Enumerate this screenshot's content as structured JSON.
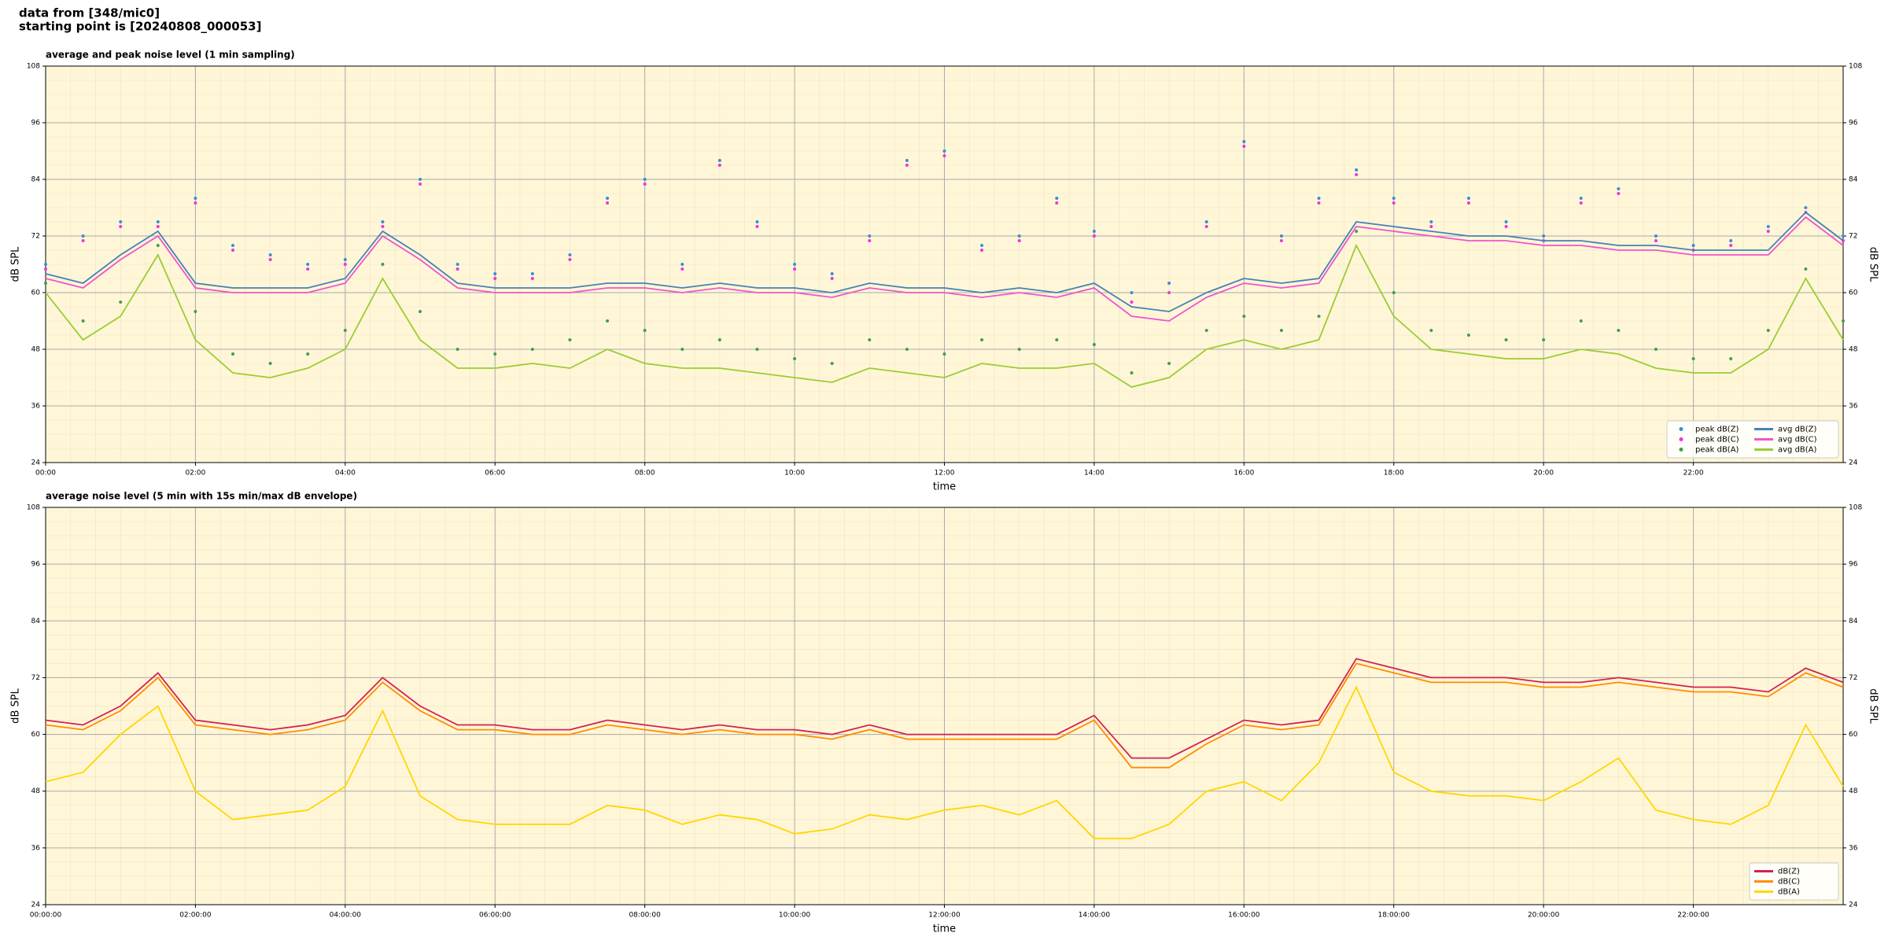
{
  "header": {
    "line1": "data from [348/mic0]",
    "line2": "starting point is [20240808_000053]"
  },
  "chart_data": [
    {
      "type": "line",
      "title": "average and peak noise level (1 min sampling)",
      "xlabel": "time",
      "ylabel": "dB SPL",
      "x": [
        0,
        0.5,
        1,
        1.5,
        2,
        2.5,
        3,
        3.5,
        4,
        4.5,
        5,
        5.5,
        6,
        6.5,
        7,
        7.5,
        8,
        8.5,
        9,
        9.5,
        10,
        10.5,
        11,
        11.5,
        12,
        12.5,
        13,
        13.5,
        14,
        14.5,
        15,
        15.5,
        16,
        16.5,
        17,
        17.5,
        18,
        18.5,
        19,
        19.5,
        20,
        20.5,
        21,
        21.5,
        22,
        22.5,
        23,
        23.5,
        24
      ],
      "xlim": [
        0,
        24
      ],
      "ylim": [
        24,
        108
      ],
      "yticks": [
        24,
        36,
        48,
        60,
        72,
        84,
        96,
        108
      ],
      "xticks": [
        {
          "value": 0,
          "label": "00:00"
        },
        {
          "value": 2,
          "label": "02:00"
        },
        {
          "value": 4,
          "label": "04:00"
        },
        {
          "value": 6,
          "label": "06:00"
        },
        {
          "value": 8,
          "label": "08:00"
        },
        {
          "value": 10,
          "label": "10:00"
        },
        {
          "value": 12,
          "label": "12:00"
        },
        {
          "value": 14,
          "label": "14:00"
        },
        {
          "value": 16,
          "label": "16:00"
        },
        {
          "value": 18,
          "label": "18:00"
        },
        {
          "value": 20,
          "label": "20:00"
        },
        {
          "value": 22,
          "label": "22:00"
        }
      ],
      "grid": true,
      "legend": "lower right",
      "legend_columns": 2,
      "series": [
        {
          "name": "peak dB(Z)",
          "style": "dots",
          "color": "#3a8fd0",
          "values": [
            66,
            72,
            75,
            75,
            80,
            70,
            68,
            66,
            67,
            75,
            84,
            66,
            64,
            64,
            68,
            80,
            84,
            66,
            88,
            75,
            66,
            64,
            72,
            88,
            90,
            70,
            72,
            80,
            73,
            60,
            62,
            75,
            92,
            72,
            80,
            86,
            80,
            75,
            80,
            75,
            72,
            80,
            82,
            72,
            70,
            71,
            74,
            78,
            72
          ]
        },
        {
          "name": "peak dB(C)",
          "style": "dots",
          "color": "#ee33dd",
          "values": [
            65,
            71,
            74,
            74,
            79,
            69,
            67,
            65,
            66,
            74,
            83,
            65,
            63,
            63,
            67,
            79,
            83,
            65,
            87,
            74,
            65,
            63,
            71,
            87,
            89,
            69,
            71,
            79,
            72,
            58,
            60,
            74,
            91,
            71,
            79,
            85,
            79,
            74,
            79,
            74,
            71,
            79,
            81,
            71,
            69,
            70,
            73,
            77,
            71
          ]
        },
        {
          "name": "peak dB(A)",
          "style": "dots",
          "color": "#3f9f4f",
          "values": [
            62,
            54,
            58,
            70,
            56,
            47,
            45,
            47,
            52,
            66,
            56,
            48,
            47,
            48,
            50,
            54,
            52,
            48,
            50,
            48,
            46,
            45,
            50,
            48,
            47,
            50,
            48,
            50,
            49,
            43,
            45,
            52,
            55,
            52,
            55,
            73,
            60,
            52,
            51,
            50,
            50,
            54,
            52,
            48,
            46,
            46,
            52,
            65,
            54
          ]
        },
        {
          "name": "avg dB(Z)",
          "style": "line",
          "color": "#4682b4",
          "values": [
            64,
            62,
            68,
            73,
            62,
            61,
            61,
            61,
            63,
            73,
            68,
            62,
            61,
            61,
            61,
            62,
            62,
            61,
            62,
            61,
            61,
            60,
            62,
            61,
            61,
            60,
            61,
            60,
            62,
            57,
            56,
            60,
            63,
            62,
            63,
            75,
            74,
            73,
            72,
            72,
            71,
            71,
            70,
            70,
            69,
            69,
            69,
            77,
            71
          ]
        },
        {
          "name": "avg dB(C)",
          "style": "line",
          "color": "#ee55cc",
          "values": [
            63,
            61,
            67,
            72,
            61,
            60,
            60,
            60,
            62,
            72,
            67,
            61,
            60,
            60,
            60,
            61,
            61,
            60,
            61,
            60,
            60,
            59,
            61,
            60,
            60,
            59,
            60,
            59,
            61,
            55,
            54,
            59,
            62,
            61,
            62,
            74,
            73,
            72,
            71,
            71,
            70,
            70,
            69,
            69,
            68,
            68,
            68,
            76,
            70
          ]
        },
        {
          "name": "avg dB(A)",
          "style": "line",
          "color": "#9acd32",
          "values": [
            60,
            50,
            55,
            68,
            50,
            43,
            42,
            44,
            48,
            63,
            50,
            44,
            44,
            45,
            44,
            48,
            45,
            44,
            44,
            43,
            42,
            41,
            44,
            43,
            42,
            45,
            44,
            44,
            45,
            40,
            42,
            48,
            50,
            48,
            50,
            70,
            55,
            48,
            47,
            46,
            46,
            48,
            47,
            44,
            43,
            43,
            48,
            63,
            50
          ]
        }
      ]
    },
    {
      "type": "line",
      "title": "average noise level (5 min with 15s min/max dB envelope)",
      "xlabel": "time",
      "ylabel": "dB SPL",
      "x": [
        0,
        0.5,
        1,
        1.5,
        2,
        2.5,
        3,
        3.5,
        4,
        4.5,
        5,
        5.5,
        6,
        6.5,
        7,
        7.5,
        8,
        8.5,
        9,
        9.5,
        10,
        10.5,
        11,
        11.5,
        12,
        12.5,
        13,
        13.5,
        14,
        14.5,
        15,
        15.5,
        16,
        16.5,
        17,
        17.5,
        18,
        18.5,
        19,
        19.5,
        20,
        20.5,
        21,
        21.5,
        22,
        22.5,
        23,
        23.5,
        24
      ],
      "xlim": [
        0,
        24
      ],
      "ylim": [
        24,
        108
      ],
      "yticks": [
        24,
        36,
        48,
        60,
        72,
        84,
        96,
        108
      ],
      "xticks": [
        {
          "value": 0,
          "label": "00:00:00"
        },
        {
          "value": 2,
          "label": "02:00:00"
        },
        {
          "value": 4,
          "label": "04:00:00"
        },
        {
          "value": 6,
          "label": "06:00:00"
        },
        {
          "value": 8,
          "label": "08:00:00"
        },
        {
          "value": 10,
          "label": "10:00:00"
        },
        {
          "value": 12,
          "label": "12:00:00"
        },
        {
          "value": 14,
          "label": "14:00:00"
        },
        {
          "value": 16,
          "label": "16:00:00"
        },
        {
          "value": 18,
          "label": "18:00:00"
        },
        {
          "value": 20,
          "label": "20:00:00"
        },
        {
          "value": 22,
          "label": "22:00:00"
        }
      ],
      "grid": true,
      "legend": "lower right",
      "legend_columns": 1,
      "series": [
        {
          "name": "dB(Z)",
          "style": "line",
          "color": "#d6204f",
          "values": [
            63,
            62,
            66,
            73,
            63,
            62,
            61,
            62,
            64,
            72,
            66,
            62,
            62,
            61,
            61,
            63,
            62,
            61,
            62,
            61,
            61,
            60,
            62,
            60,
            60,
            60,
            60,
            60,
            64,
            55,
            55,
            59,
            63,
            62,
            63,
            76,
            74,
            72,
            72,
            72,
            71,
            71,
            72,
            71,
            70,
            70,
            69,
            74,
            71
          ]
        },
        {
          "name": "dB(C)",
          "style": "line",
          "color": "#ff8c00",
          "values": [
            62,
            61,
            65,
            72,
            62,
            61,
            60,
            61,
            63,
            71,
            65,
            61,
            61,
            60,
            60,
            62,
            61,
            60,
            61,
            60,
            60,
            59,
            61,
            59,
            59,
            59,
            59,
            59,
            63,
            53,
            53,
            58,
            62,
            61,
            62,
            75,
            73,
            71,
            71,
            71,
            70,
            70,
            71,
            70,
            69,
            69,
            68,
            73,
            70
          ]
        },
        {
          "name": "dB(A)",
          "style": "line",
          "color": "#ffd700",
          "values": [
            50,
            52,
            60,
            66,
            48,
            42,
            43,
            44,
            49,
            65,
            47,
            42,
            41,
            41,
            41,
            45,
            44,
            41,
            43,
            42,
            39,
            40,
            43,
            42,
            44,
            45,
            43,
            46,
            38,
            38,
            41,
            48,
            50,
            46,
            54,
            70,
            52,
            48,
            47,
            47,
            46,
            50,
            55,
            44,
            42,
            41,
            45,
            62,
            49
          ]
        }
      ]
    }
  ]
}
